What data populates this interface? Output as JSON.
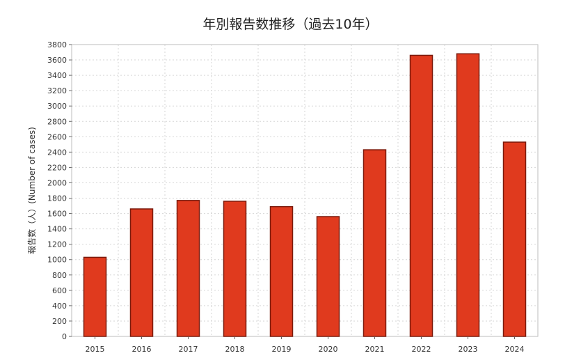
{
  "chart_data": {
    "type": "bar",
    "title": "年別報告数推移（過去10年）",
    "xlabel": "",
    "ylabel": "報告数（人）(Number of cases)",
    "categories": [
      "2015",
      "2016",
      "2017",
      "2018",
      "2019",
      "2020",
      "2021",
      "2022",
      "2023",
      "2024"
    ],
    "values": [
      1030,
      1660,
      1770,
      1760,
      1690,
      1560,
      2430,
      3660,
      3680,
      2530
    ],
    "ylim": [
      0,
      3800
    ],
    "yticks": [
      0,
      200,
      400,
      600,
      800,
      1000,
      1200,
      1400,
      1600,
      1800,
      2000,
      2200,
      2400,
      2600,
      2800,
      3000,
      3200,
      3400,
      3600,
      3800
    ],
    "grid": true,
    "legend": "none",
    "bar_color": "#e03a1e",
    "bar_edge_color": "#7a1a0c"
  }
}
